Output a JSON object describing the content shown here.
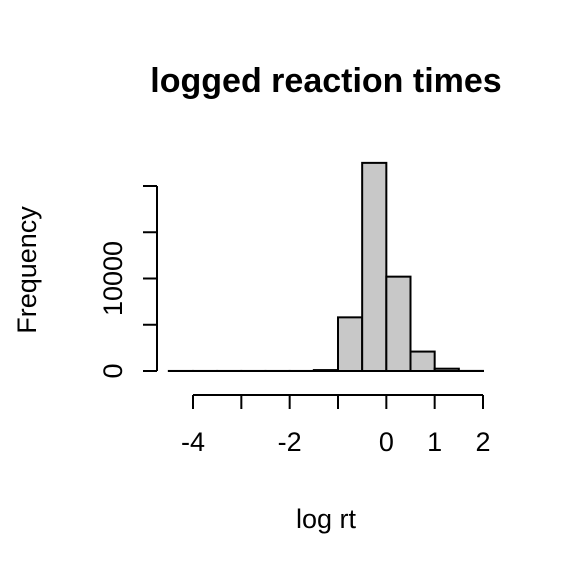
{
  "chart_data": {
    "type": "bar",
    "title": "logged reaction times",
    "xlabel": "log rt",
    "ylabel": "Frequency",
    "bar_color": "#c8c8c8",
    "bin_width": 0.5,
    "bins": [
      {
        "start": -4.5,
        "end": -4.0,
        "count": 5
      },
      {
        "start": -4.0,
        "end": -3.5,
        "count": 5
      },
      {
        "start": -3.5,
        "end": -3.0,
        "count": 5
      },
      {
        "start": -3.0,
        "end": -2.5,
        "count": 5
      },
      {
        "start": -2.5,
        "end": -2.0,
        "count": 5
      },
      {
        "start": -2.0,
        "end": -1.5,
        "count": 5
      },
      {
        "start": -1.5,
        "end": -1.0,
        "count": 100
      },
      {
        "start": -1.0,
        "end": -0.5,
        "count": 5800
      },
      {
        "start": -0.5,
        "end": 0.0,
        "count": 22500
      },
      {
        "start": 0.0,
        "end": 0.5,
        "count": 10200
      },
      {
        "start": 0.5,
        "end": 1.0,
        "count": 2100
      },
      {
        "start": 1.0,
        "end": 1.5,
        "count": 250
      },
      {
        "start": 1.5,
        "end": 2.0,
        "count": 10
      }
    ],
    "xlim": [
      -4.5,
      2.0
    ],
    "ylim": [
      0,
      20000
    ],
    "x_ticks": [
      -4,
      -3,
      -2,
      -1,
      0,
      1,
      2
    ],
    "x_tick_labels": [
      {
        "value": -4,
        "label": "-4"
      },
      {
        "value": -2,
        "label": "-2"
      },
      {
        "value": 0,
        "label": "0"
      },
      {
        "value": 1,
        "label": "1"
      },
      {
        "value": 2,
        "label": "2"
      }
    ],
    "y_ticks": [
      0,
      5000,
      10000,
      15000,
      20000
    ],
    "y_tick_labels": [
      {
        "value": 0,
        "label": "0"
      },
      {
        "value": 10000,
        "label": "10000"
      }
    ],
    "grid": false
  }
}
